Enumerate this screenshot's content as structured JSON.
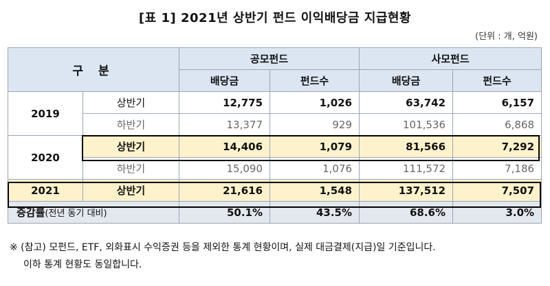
{
  "title": "[표 1] 2021년 상반기 펀드 이익배당금 지급현황",
  "unit": "(단위 : 개, 억원)",
  "header": {
    "category": "구 분",
    "public_fund": "공모펀드",
    "private_fund": "사모펀드",
    "dividend": "배당금",
    "fund_count": "펀드수"
  },
  "rows": [
    {
      "year": "2019",
      "half": "상반기",
      "pub_div": "12,775",
      "pub_cnt": "1,026",
      "prv_div": "63,742",
      "prv_cnt": "6,157"
    },
    {
      "year": "",
      "half": "하반기",
      "pub_div": "13,377",
      "pub_cnt": "929",
      "prv_div": "101,536",
      "prv_cnt": "6,868"
    },
    {
      "year": "2020",
      "half": "상반기",
      "pub_div": "14,406",
      "pub_cnt": "1,079",
      "prv_div": "81,566",
      "prv_cnt": "7,292"
    },
    {
      "year": "",
      "half": "하반기",
      "pub_div": "15,090",
      "pub_cnt": "1,076",
      "prv_div": "111,572",
      "prv_cnt": "7,186"
    },
    {
      "year": "2021",
      "half": "상반기",
      "pub_div": "21,616",
      "pub_cnt": "1,548",
      "prv_div": "137,512",
      "prv_cnt": "7,507"
    }
  ],
  "change": {
    "label": "증감률",
    "sub": "(전년 동기 대비)",
    "pub_div": "50.1%",
    "pub_cnt": "43.5%",
    "prv_div": "68.6%",
    "prv_cnt": "3.0%"
  },
  "note": {
    "line1": "※ (참고) 모펀드, ETF, 외화표시 수익증권 등을 제외한 통계 현황이며, 실제 대금결제(지급)일 기준입니다.",
    "line2": "이하 통계 현황도 동일합니다."
  }
}
